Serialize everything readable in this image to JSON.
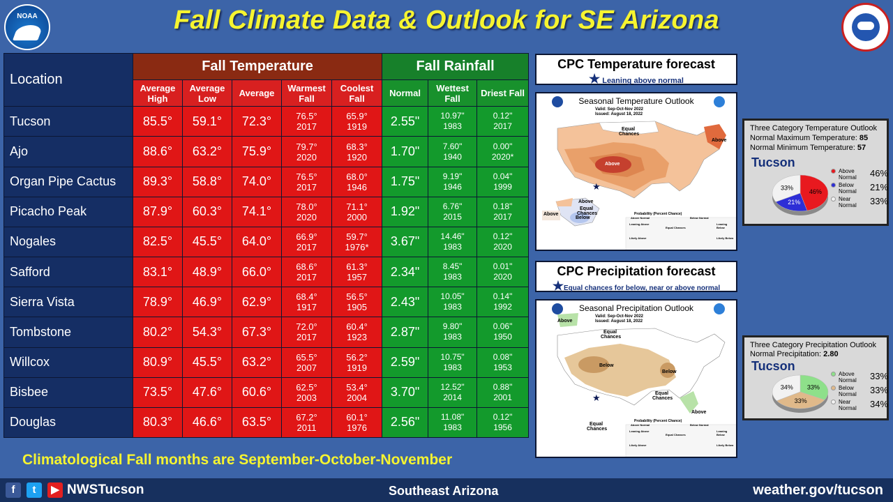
{
  "title": "Fall Climate Data & Outlook for SE Arizona",
  "logos": {
    "noaa": "NOAA"
  },
  "table": {
    "location_header": "Location",
    "temp_header": "Fall Temperature",
    "rain_header": "Fall Rainfall",
    "temp_cols": [
      "Average High",
      "Average Low",
      "Average",
      "Warmest Fall",
      "Coolest Fall"
    ],
    "rain_cols": [
      "Normal",
      "Wettest Fall",
      "Driest Fall"
    ],
    "rows": [
      {
        "loc": "Tucson",
        "hi": "85.5°",
        "lo": "59.1°",
        "avg": "72.3°",
        "warm": "76.5°",
        "warm_yr": "2017",
        "cool": "65.9°",
        "cool_yr": "1919",
        "normal": "2.55\"",
        "wet": "10.97\"",
        "wet_yr": "1983",
        "dry": "0.12\"",
        "dry_yr": "2017"
      },
      {
        "loc": "Ajo",
        "hi": "88.6°",
        "lo": "63.2°",
        "avg": "75.9°",
        "warm": "79.7°",
        "warm_yr": "2020",
        "cool": "68.3°",
        "cool_yr": "1920",
        "normal": "1.70\"",
        "wet": "7.60\"",
        "wet_yr": "1940",
        "dry": "0.00\"",
        "dry_yr": "2020*"
      },
      {
        "loc": "Organ Pipe Cactus",
        "hi": "89.3°",
        "lo": "58.8°",
        "avg": "74.0°",
        "warm": "76.5°",
        "warm_yr": "2017",
        "cool": "68.0°",
        "cool_yr": "1946",
        "normal": "1.75\"",
        "wet": "9.19\"",
        "wet_yr": "1946",
        "dry": "0.04\"",
        "dry_yr": "1999"
      },
      {
        "loc": "Picacho Peak",
        "hi": "87.9°",
        "lo": "60.3°",
        "avg": "74.1°",
        "warm": "78.0°",
        "warm_yr": "2020",
        "cool": "71.1°",
        "cool_yr": "2000",
        "normal": "1.92\"",
        "wet": "6.76\"",
        "wet_yr": "2015",
        "dry": "0.18\"",
        "dry_yr": "2017"
      },
      {
        "loc": "Nogales",
        "hi": "82.5°",
        "lo": "45.5°",
        "avg": "64.0°",
        "warm": "66.9°",
        "warm_yr": "2017",
        "cool": "59.7°",
        "cool_yr": "1976*",
        "normal": "3.67\"",
        "wet": "14.46\"",
        "wet_yr": "1983",
        "dry": "0.12\"",
        "dry_yr": "2020"
      },
      {
        "loc": "Safford",
        "hi": "83.1°",
        "lo": "48.9°",
        "avg": "66.0°",
        "warm": "68.6°",
        "warm_yr": "2017",
        "cool": "61.3°",
        "cool_yr": "1957",
        "normal": "2.34\"",
        "wet": "8.45\"",
        "wet_yr": "1983",
        "dry": "0.01\"",
        "dry_yr": "2020"
      },
      {
        "loc": "Sierra Vista",
        "hi": "78.9°",
        "lo": "46.9°",
        "avg": "62.9°",
        "warm": "68.4°",
        "warm_yr": "1917",
        "cool": "56.5°",
        "cool_yr": "1905",
        "normal": "2.43\"",
        "wet": "10.05\"",
        "wet_yr": "1983",
        "dry": "0.14\"",
        "dry_yr": "1992"
      },
      {
        "loc": "Tombstone",
        "hi": "80.2°",
        "lo": "54.3°",
        "avg": "67.3°",
        "warm": "72.0°",
        "warm_yr": "2017",
        "cool": "60.4°",
        "cool_yr": "1923",
        "normal": "2.87\"",
        "wet": "9.80\"",
        "wet_yr": "1983",
        "dry": "0.06\"",
        "dry_yr": "1950"
      },
      {
        "loc": "Willcox",
        "hi": "80.9°",
        "lo": "45.5°",
        "avg": "63.2°",
        "warm": "65.5°",
        "warm_yr": "2007",
        "cool": "56.2°",
        "cool_yr": "1919",
        "normal": "2.59\"",
        "wet": "10.75\"",
        "wet_yr": "1983",
        "dry": "0.08\"",
        "dry_yr": "1953"
      },
      {
        "loc": "Bisbee",
        "hi": "73.5°",
        "lo": "47.6°",
        "avg": "60.6°",
        "warm": "62.5°",
        "warm_yr": "2003",
        "cool": "53.4°",
        "cool_yr": "2004",
        "normal": "3.70\"",
        "wet": "12.52\"",
        "wet_yr": "2014",
        "dry": "0.88\"",
        "dry_yr": "2001"
      },
      {
        "loc": "Douglas",
        "hi": "80.3°",
        "lo": "46.6°",
        "avg": "63.5°",
        "warm": "67.2°",
        "warm_yr": "2011",
        "cool": "60.1°",
        "cool_yr": "1976",
        "normal": "2.56\"",
        "wet": "11.08\"",
        "wet_yr": "1983",
        "dry": "0.12\"",
        "dry_yr": "1956"
      }
    ]
  },
  "footnote": "Climatological Fall months are September-October-November",
  "cpc_temp": {
    "heading": "CPC Temperature forecast",
    "sub_pre": "Leaning ",
    "sub_em": "above",
    "sub_post": " normal"
  },
  "cpc_precip": {
    "heading": "CPC Precipitation forecast",
    "sub": "Equal chances for below, near or above normal"
  },
  "temp_map": {
    "title": "Seasonal Temperature Outlook",
    "valid": "Valid:   Sep-Oct-Nov 2022",
    "issued": "Issued:   August 18, 2022",
    "labels": {
      "equal1": "Equal",
      "chances1": "Chances",
      "above1": "Above",
      "above2": "Above",
      "above3": "Above",
      "equal2": "Equal",
      "chances2": "Chances",
      "below": "Below",
      "above4": "Above"
    },
    "legend_title": "Probability (Percent Chance)",
    "legend_above": "Above Normal",
    "legend_below": "Below Normal",
    "legend_ec": "Equal Chances",
    "lean_above": "Leaning Above",
    "likely_above": "Likely Above",
    "lean_below": "Leaning Below",
    "likely_below": "Likely Below"
  },
  "precip_map": {
    "title": "Seasonal Precipitation Outlook",
    "valid": "Valid:   Sep-Oct-Nov 2022",
    "issued": "Issued:   August 18, 2022",
    "labels": {
      "above1": "Above",
      "equal1": "Equal",
      "chances1": "Chances",
      "below1": "Below",
      "below2": "Below",
      "equal2": "Equal",
      "chances2": "Chances",
      "above2": "Above",
      "equal3": "Equal",
      "chances3": "Chances"
    },
    "legend_title": "Probability (Percent Chance)",
    "legend_above": "Above Normal",
    "legend_below": "Below Normal",
    "legend_ec": "Equal Chances",
    "lean_above": "Leaning Above",
    "likely_above": "Likely Above",
    "lean_below": "Leaning Below",
    "likely_below": "Likely Below"
  },
  "temp_pie": {
    "title": "Three Category Temperature Outlook",
    "line1_pre": "Normal Maximum Temperature: ",
    "line1_val": "85",
    "line2_pre": "Normal Minimum Temperature: ",
    "line2_val": "57",
    "city": "Tucson",
    "slices": [
      {
        "cat": "Above",
        "sub": "Normal",
        "pct": "46%",
        "slice_label": "46%",
        "value": 46,
        "color": "#e8191f"
      },
      {
        "cat": "Below",
        "sub": "Normal",
        "pct": "21%",
        "slice_label": "21%",
        "value": 21,
        "color": "#2d2ed6"
      },
      {
        "cat": "Near",
        "sub": "Normal",
        "pct": "33%",
        "slice_label": "33%",
        "value": 33,
        "color": "#f2f2f2"
      }
    ]
  },
  "precip_pie": {
    "title": "Three Category Precipitation Outlook",
    "line1_pre": "Normal Precipitation: ",
    "line1_val": "2.80",
    "city": "Tucson",
    "slices": [
      {
        "cat": "Above",
        "sub": "Normal",
        "pct": "33%",
        "slice_label": "33%",
        "value": 33,
        "color": "#8ee08a"
      },
      {
        "cat": "Below",
        "sub": "Normal",
        "pct": "33%",
        "slice_label": "33%",
        "value": 33,
        "color": "#e0b98a"
      },
      {
        "cat": "Near",
        "sub": "Normal",
        "pct": "34%",
        "slice_label": "34%",
        "value": 34,
        "color": "#f2f2f2"
      }
    ]
  },
  "footer": {
    "fb": "f",
    "tw": "t",
    "yt": "▶",
    "handle": "NWSTucson",
    "region": "Southeast Arizona",
    "site": "weather.gov/tucson"
  }
}
